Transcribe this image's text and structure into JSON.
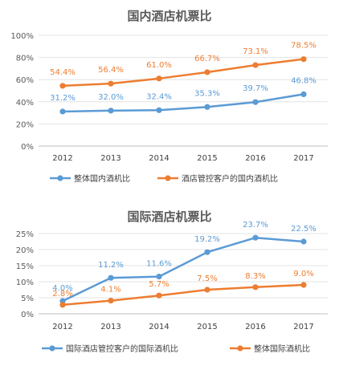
{
  "chart_data": [
    {
      "type": "line",
      "title": "国内酒店机票比",
      "categories": [
        "2012",
        "2013",
        "2014",
        "2015",
        "2016",
        "2017"
      ],
      "ylim": [
        0,
        100
      ],
      "yticks": [
        "0%",
        "20%",
        "40%",
        "60%",
        "80%",
        "100%"
      ],
      "ytick_values": [
        0,
        20,
        40,
        60,
        80,
        100
      ],
      "grid": true,
      "legend_position": "bottom",
      "series": [
        {
          "name": "整体国内酒机比",
          "color": "#5B9BD5",
          "values": [
            31.2,
            32.0,
            32.4,
            35.3,
            39.7,
            46.8
          ],
          "labels": [
            "31.2%",
            "32.0%",
            "32.4%",
            "35.3%",
            "39.7%",
            "46.8%"
          ]
        },
        {
          "name": "酒店管控客户的国内酒机比",
          "color": "#ED7D31",
          "values": [
            54.4,
            56.4,
            61.0,
            66.7,
            73.1,
            78.5
          ],
          "labels": [
            "54.4%",
            "56.4%",
            "61.0%",
            "66.7%",
            "73.1%",
            "78.5%"
          ]
        }
      ]
    },
    {
      "type": "line",
      "title": "国际酒店机票比",
      "categories": [
        "2012",
        "2013",
        "2014",
        "2015",
        "2016",
        "2017"
      ],
      "ylim": [
        0,
        25
      ],
      "yticks": [
        "0%",
        "5%",
        "10%",
        "15%",
        "20%",
        "25%"
      ],
      "ytick_values": [
        0,
        5,
        10,
        15,
        20,
        25
      ],
      "grid": true,
      "legend_position": "bottom",
      "series": [
        {
          "name": "国际酒店管控客户的国际酒机比",
          "color": "#5B9BD5",
          "values": [
            4.0,
            11.2,
            11.6,
            19.2,
            23.7,
            22.5
          ],
          "labels": [
            "4.0%",
            "11.2%",
            "11.6%",
            "19.2%",
            "23.7%",
            "22.5%"
          ]
        },
        {
          "name": "整体国际酒机比",
          "color": "#ED7D31",
          "values": [
            2.8,
            4.1,
            5.7,
            7.5,
            8.3,
            9.0
          ],
          "labels": [
            "2.8%",
            "4.1%",
            "5.7%",
            "7.5%",
            "8.3%",
            "9.0%"
          ]
        }
      ]
    }
  ]
}
